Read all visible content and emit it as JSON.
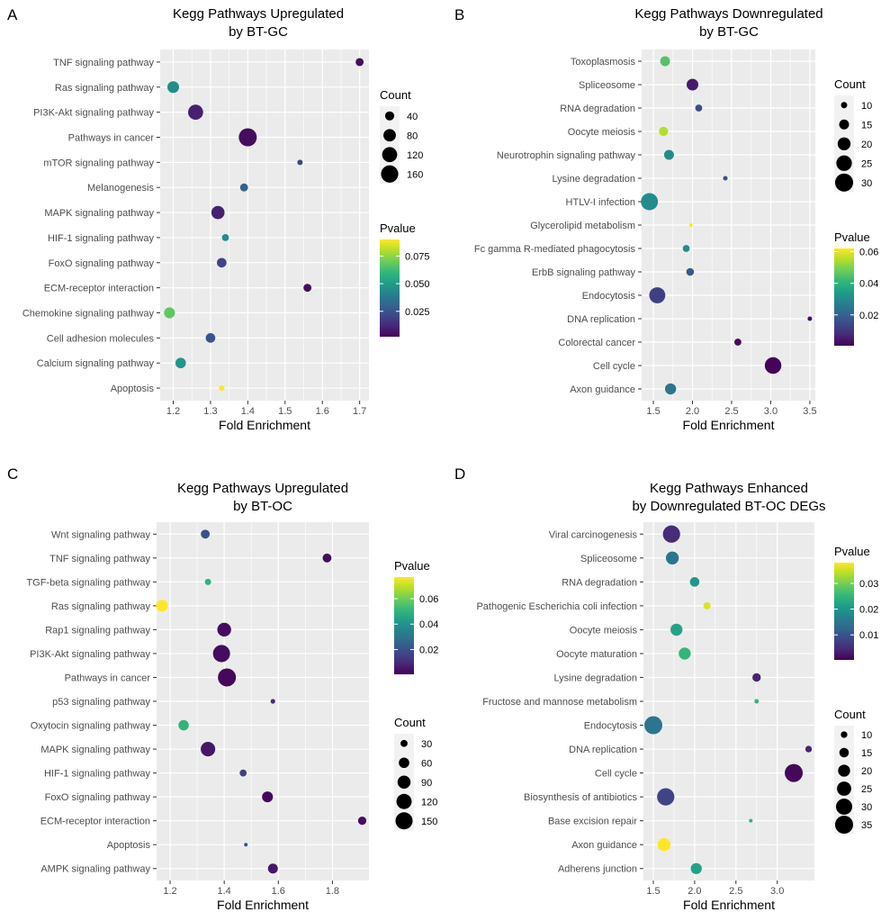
{
  "figure": {
    "background": "#ffffff",
    "plot_bg": "#ebebeb",
    "grid_color": "#ffffff"
  },
  "chart_data": [
    {
      "panel_label": "A",
      "type": "scatter",
      "title_lines": [
        "Kegg Pathways Upregulated",
        "by BT-GC"
      ],
      "xlabel": "Fold Enrichment",
      "ylabel": "",
      "xlim": [
        1.165,
        1.725
      ],
      "xticks": [
        1.2,
        1.3,
        1.4,
        1.5,
        1.6,
        1.7
      ],
      "xtick_labels": [
        "1.2",
        "1.3",
        "1.4",
        "1.5",
        "1.6",
        "1.7"
      ],
      "size_range": [
        3,
        10
      ],
      "legends": [
        {
          "type": "size",
          "title": "Count",
          "breaks": [
            40,
            80,
            120,
            160
          ],
          "labels": [
            "40",
            "80",
            "120",
            "160"
          ]
        },
        {
          "type": "color",
          "title": "Pvalue",
          "range": [
            0.002,
            0.09
          ],
          "breaks": [
            0.025,
            0.05,
            0.075
          ],
          "labels": [
            "0.025",
            "0.050",
            "0.075"
          ]
        }
      ],
      "points": [
        {
          "label": "TNF signaling pathway",
          "fold": 1.7,
          "count": 30,
          "pvalue": 0.005
        },
        {
          "label": "Ras signaling pathway",
          "fold": 1.2,
          "count": 70,
          "pvalue": 0.045
        },
        {
          "label": "PI3K-Akt signaling pathway",
          "fold": 1.26,
          "count": 120,
          "pvalue": 0.01
        },
        {
          "label": "Pathways in cancer",
          "fold": 1.4,
          "count": 175,
          "pvalue": 0.005
        },
        {
          "label": "mTOR signaling pathway",
          "fold": 1.54,
          "count": 12,
          "pvalue": 0.02
        },
        {
          "label": "Melanogenesis",
          "fold": 1.39,
          "count": 30,
          "pvalue": 0.03
        },
        {
          "label": "MAPK signaling pathway",
          "fold": 1.32,
          "count": 90,
          "pvalue": 0.01
        },
        {
          "label": "HIF-1 signaling pathway",
          "fold": 1.34,
          "count": 22,
          "pvalue": 0.045
        },
        {
          "label": "FoxO signaling pathway",
          "fold": 1.33,
          "count": 45,
          "pvalue": 0.02
        },
        {
          "label": "ECM-receptor interaction",
          "fold": 1.56,
          "count": 30,
          "pvalue": 0.005
        },
        {
          "label": "Chemokine signaling pathway",
          "fold": 1.19,
          "count": 60,
          "pvalue": 0.068
        },
        {
          "label": "Cell adhesion molecules",
          "fold": 1.3,
          "count": 45,
          "pvalue": 0.025
        },
        {
          "label": "Calcium signaling pathway",
          "fold": 1.22,
          "count": 55,
          "pvalue": 0.048
        },
        {
          "label": "Apoptosis",
          "fold": 1.33,
          "count": 12,
          "pvalue": 0.09
        }
      ]
    },
    {
      "panel_label": "B",
      "type": "scatter",
      "title_lines": [
        "Kegg Pathways Downregulated",
        "by BT-GC"
      ],
      "xlabel": "Fold Enrichment",
      "ylabel": "",
      "xlim": [
        1.35,
        3.57
      ],
      "xticks": [
        1.5,
        2.0,
        2.5,
        3.0,
        3.5
      ],
      "xtick_labels": [
        "1.5",
        "2.0",
        "2.5",
        "3.0",
        "3.5"
      ],
      "size_range": [
        2,
        10
      ],
      "legends": [
        {
          "type": "size",
          "title": "Count",
          "breaks": [
            10,
            15,
            20,
            25,
            30
          ],
          "labels": [
            "10",
            "15",
            "20",
            "25",
            "30"
          ]
        },
        {
          "type": "color",
          "title": "Pvalue",
          "range": [
            0.0005,
            0.062
          ],
          "breaks": [
            0.02,
            0.04,
            0.06
          ],
          "labels": [
            "0.02",
            "0.04",
            "0.06"
          ]
        }
      ],
      "points": [
        {
          "label": "Toxoplasmosis",
          "fold": 1.65,
          "count": 15,
          "pvalue": 0.045
        },
        {
          "label": "Spliceosome",
          "fold": 2.0,
          "count": 18,
          "pvalue": 0.005
        },
        {
          "label": "RNA degradation",
          "fold": 2.08,
          "count": 11,
          "pvalue": 0.015
        },
        {
          "label": "Oocyte meiosis",
          "fold": 1.63,
          "count": 14,
          "pvalue": 0.055
        },
        {
          "label": "Neurotrophin signaling pathway",
          "fold": 1.7,
          "count": 15,
          "pvalue": 0.03
        },
        {
          "label": "Lysine degradation",
          "fold": 2.42,
          "count": 8,
          "pvalue": 0.015
        },
        {
          "label": "HTLV-I infection",
          "fold": 1.45,
          "count": 28,
          "pvalue": 0.03
        },
        {
          "label": "Glycerolipid metabolism",
          "fold": 1.98,
          "count": 7,
          "pvalue": 0.062
        },
        {
          "label": "Fc gamma R-mediated phagocytosis",
          "fold": 1.92,
          "count": 11,
          "pvalue": 0.03
        },
        {
          "label": "ErbB signaling pathway",
          "fold": 1.97,
          "count": 12,
          "pvalue": 0.018
        },
        {
          "label": "Endocytosis",
          "fold": 1.55,
          "count": 26,
          "pvalue": 0.012
        },
        {
          "label": "DNA replication",
          "fold": 3.5,
          "count": 8,
          "pvalue": 0.003
        },
        {
          "label": "Colorectal cancer",
          "fold": 2.58,
          "count": 11,
          "pvalue": 0.002
        },
        {
          "label": "Cell cycle",
          "fold": 3.03,
          "count": 27,
          "pvalue": 0.001
        },
        {
          "label": "Axon guidance",
          "fold": 1.72,
          "count": 17,
          "pvalue": 0.025
        }
      ]
    },
    {
      "panel_label": "C",
      "type": "scatter",
      "title_lines": [
        "Kegg Pathways Upregulated",
        "by BT-OC"
      ],
      "xlabel": "Fold Enrichment",
      "ylabel": "",
      "xlim": [
        1.15,
        1.935
      ],
      "xticks": [
        1.2,
        1.4,
        1.6,
        1.8
      ],
      "xtick_labels": [
        "1.2",
        "1.4",
        "1.6",
        "1.8"
      ],
      "size_range": [
        2,
        10
      ],
      "legends": [
        {
          "type": "color",
          "title": "Pvalue",
          "range": [
            0.0005,
            0.077
          ],
          "breaks": [
            0.02,
            0.04,
            0.06
          ],
          "labels": [
            "0.02",
            "0.04",
            "0.06"
          ]
        },
        {
          "type": "size",
          "title": "Count",
          "breaks": [
            30,
            60,
            90,
            120,
            150
          ],
          "labels": [
            "30",
            "60",
            "90",
            "120",
            "150"
          ]
        }
      ],
      "points": [
        {
          "label": "Wnt signaling pathway",
          "fold": 1.33,
          "count": 45,
          "pvalue": 0.02
        },
        {
          "label": "TNF signaling pathway",
          "fold": 1.78,
          "count": 45,
          "pvalue": 0.003
        },
        {
          "label": "TGF-beta signaling pathway",
          "fold": 1.34,
          "count": 25,
          "pvalue": 0.05
        },
        {
          "label": "Ras signaling pathway",
          "fold": 1.17,
          "count": 75,
          "pvalue": 0.077
        },
        {
          "label": "Rap1 signaling pathway",
          "fold": 1.4,
          "count": 100,
          "pvalue": 0.003
        },
        {
          "label": "PI3K-Akt signaling pathway",
          "fold": 1.39,
          "count": 150,
          "pvalue": 0.003
        },
        {
          "label": "Pathways in cancer",
          "fold": 1.41,
          "count": 165,
          "pvalue": 0.002
        },
        {
          "label": "p53 signaling pathway",
          "fold": 1.58,
          "count": 15,
          "pvalue": 0.01
        },
        {
          "label": "Oxytocin signaling pathway",
          "fold": 1.25,
          "count": 60,
          "pvalue": 0.05
        },
        {
          "label": "MAPK signaling pathway",
          "fold": 1.34,
          "count": 110,
          "pvalue": 0.005
        },
        {
          "label": "HIF-1 signaling pathway",
          "fold": 1.47,
          "count": 30,
          "pvalue": 0.015
        },
        {
          "label": "FoxO signaling pathway",
          "fold": 1.56,
          "count": 65,
          "pvalue": 0.002
        },
        {
          "label": "ECM-receptor interaction",
          "fold": 1.91,
          "count": 40,
          "pvalue": 0.003
        },
        {
          "label": "Apoptosis",
          "fold": 1.48,
          "count": 10,
          "pvalue": 0.02
        },
        {
          "label": "AMPK signaling pathway",
          "fold": 1.58,
          "count": 55,
          "pvalue": 0.005
        }
      ]
    },
    {
      "panel_label": "D",
      "type": "scatter",
      "title_lines": [
        "Kegg Pathways Enhanced",
        "by Downregulated BT-OC DEGs"
      ],
      "xlabel": "Fold Enrichment",
      "ylabel": "",
      "xlim": [
        1.38,
        3.45
      ],
      "xticks": [
        1.5,
        2.0,
        2.5,
        3.0
      ],
      "xtick_labels": [
        "1.5",
        "2.0",
        "2.5",
        "3.0"
      ],
      "size_range": [
        2,
        10
      ],
      "legends": [
        {
          "type": "color",
          "title": "Pvalue",
          "range": [
            0.0003,
            0.038
          ],
          "breaks": [
            0.01,
            0.02,
            0.03
          ],
          "labels": [
            "0.01",
            "0.02",
            "0.03"
          ]
        },
        {
          "type": "size",
          "title": "Count",
          "breaks": [
            10,
            15,
            20,
            25,
            30,
            35
          ],
          "labels": [
            "10",
            "15",
            "20",
            "25",
            "30",
            "35"
          ]
        }
      ],
      "points": [
        {
          "label": "Viral carcinogenesis",
          "fold": 1.72,
          "count": 33,
          "pvalue": 0.005
        },
        {
          "label": "Spliceosome",
          "fold": 1.73,
          "count": 22,
          "pvalue": 0.015
        },
        {
          "label": "RNA degradation",
          "fold": 2.0,
          "count": 15,
          "pvalue": 0.02
        },
        {
          "label": "Pathogenic Escherichia coli infection",
          "fold": 2.15,
          "count": 11,
          "pvalue": 0.036
        },
        {
          "label": "Oocyte meiosis",
          "fold": 1.78,
          "count": 20,
          "pvalue": 0.022
        },
        {
          "label": "Oocyte maturation",
          "fold": 1.88,
          "count": 20,
          "pvalue": 0.025
        },
        {
          "label": "Lysine degradation",
          "fold": 2.75,
          "count": 13,
          "pvalue": 0.004
        },
        {
          "label": "Fructose and mannose metabolism",
          "fold": 2.75,
          "count": 7,
          "pvalue": 0.025
        },
        {
          "label": "Endocytosis",
          "fold": 1.5,
          "count": 35,
          "pvalue": 0.015
        },
        {
          "label": "DNA replication",
          "fold": 3.38,
          "count": 10,
          "pvalue": 0.004
        },
        {
          "label": "Cell cycle",
          "fold": 3.2,
          "count": 35,
          "pvalue": 0.001
        },
        {
          "label": "Biosynthesis of antibiotics",
          "fold": 1.65,
          "count": 33,
          "pvalue": 0.008
        },
        {
          "label": "Base excision repair",
          "fold": 2.68,
          "count": 6,
          "pvalue": 0.025
        },
        {
          "label": "Axon guidance",
          "fold": 1.63,
          "count": 22,
          "pvalue": 0.038
        },
        {
          "label": "Adherens junction",
          "fold": 2.02,
          "count": 18,
          "pvalue": 0.022
        }
      ]
    }
  ]
}
